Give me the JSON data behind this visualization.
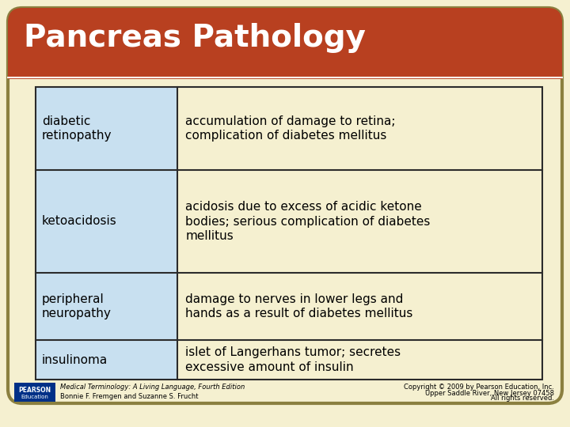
{
  "title": "Pancreas Pathology",
  "title_color": "#FFFFFF",
  "title_bg_color": "#B84020",
  "bg_color": "#F5F0D0",
  "card_border_color": "#8B8040",
  "table_border_color": "#2B2B2B",
  "left_col_bg": "#C8E0F0",
  "right_col_bg": "#F5F0D0",
  "rows": [
    {
      "term": "diabetic\nretinopathy",
      "definition": "accumulation of damage to retina;\ncomplication of diabetes mellitus"
    },
    {
      "term": "ketoacidosis",
      "definition": "acidosis due to excess of acidic ketone\nbodies; serious complication of diabetes\nmellitus"
    },
    {
      "term": "peripheral\nneuropathy",
      "definition": "damage to nerves in lower legs and\nhands as a result of diabetes mellitus"
    },
    {
      "term": "insulinoma",
      "definition": "islet of Langerhans tumor; secretes\nexcessive amount of insulin"
    }
  ],
  "footer_left_line1": "Medical Terminology: A Living Language, Fourth Edition",
  "footer_left_line2": "Bonnie F. Fremgen and Suzanne S. Frucht",
  "footer_right_line1": "Copyright © 2009 by Pearson Education, Inc.",
  "footer_right_line2": "Upper Saddle River, New Jersey 07458",
  "footer_right_line3": "All rights reserved.",
  "pearson_box_color": "#003087",
  "pearson_text": "PEARSON",
  "education_text": "Education",
  "col_split": 0.28
}
